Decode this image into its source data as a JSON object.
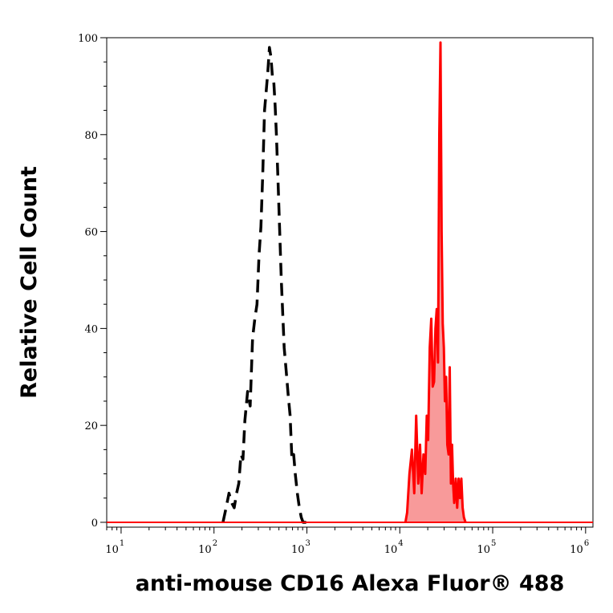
{
  "chart_data": {
    "type": "area",
    "xlabel": "anti-mouse CD16 Alexa Fluor® 488",
    "ylabel": "Relative Cell Count",
    "x_scale": "log",
    "xlim": [
      7,
      1200000
    ],
    "ylim": [
      -1,
      100
    ],
    "x_ticks": [
      {
        "value": 10,
        "base": "10",
        "exp": "1"
      },
      {
        "value": 100,
        "base": "10",
        "exp": "2"
      },
      {
        "value": 1000,
        "base": "10",
        "exp": "3"
      },
      {
        "value": 10000,
        "base": "10",
        "exp": "4"
      },
      {
        "value": 100000,
        "base": "10",
        "exp": "5"
      },
      {
        "value": 1000000,
        "base": "10",
        "exp": "6"
      }
    ],
    "y_ticks": [
      {
        "value": 0,
        "label": "0"
      },
      {
        "value": 20,
        "label": "20"
      },
      {
        "value": 40,
        "label": "40"
      },
      {
        "value": 60,
        "label": "60"
      },
      {
        "value": 80,
        "label": "80"
      },
      {
        "value": 100,
        "label": "100"
      }
    ],
    "grid": false,
    "series": [
      {
        "style": "dashed-line",
        "color": "#000000",
        "fill": "none",
        "x": [
          125,
          135,
          145,
          155,
          165,
          175,
          185,
          195,
          205,
          215,
          230,
          245,
          260,
          275,
          290,
          305,
          320,
          335,
          350,
          365,
          380,
          395,
          410,
          425,
          440,
          455,
          470,
          490,
          510,
          530,
          550,
          570,
          600,
          630,
          660,
          690,
          720,
          750,
          790,
          830,
          870,
          910,
          950,
          1000
        ],
        "y": [
          0,
          3,
          6,
          4,
          3,
          6,
          8,
          14,
          13,
          21,
          27,
          24,
          38,
          42,
          45,
          55,
          61,
          72,
          85,
          89,
          93,
          98,
          96,
          92,
          91,
          86,
          80,
          70,
          60,
          50,
          43,
          36,
          31,
          26,
          22,
          13,
          14,
          10,
          6,
          3,
          1,
          0,
          0,
          0
        ]
      },
      {
        "style": "solid-line-filled",
        "color": "#ff0000",
        "fill": "#f89a9a",
        "x": [
          11500,
          12000,
          12700,
          13500,
          14300,
          15000,
          15800,
          16500,
          17200,
          18000,
          18800,
          19500,
          20200,
          21000,
          21800,
          22600,
          23400,
          24200,
          25000,
          25800,
          26600,
          27400,
          28200,
          29000,
          29800,
          30600,
          31500,
          32500,
          33500,
          34500,
          35500,
          36500,
          37500,
          38500,
          40000,
          41500,
          43000,
          44500,
          46000,
          47500,
          49000,
          51000
        ],
        "y": [
          0,
          2,
          10,
          15,
          6,
          22,
          8,
          16,
          6,
          14,
          10,
          22,
          17,
          36,
          42,
          28,
          29,
          40,
          44,
          33,
          80,
          99,
          60,
          41,
          36,
          25,
          30,
          16,
          14,
          32,
          8,
          16,
          8,
          4,
          9,
          3,
          9,
          5,
          9,
          3,
          1,
          0
        ]
      }
    ]
  }
}
